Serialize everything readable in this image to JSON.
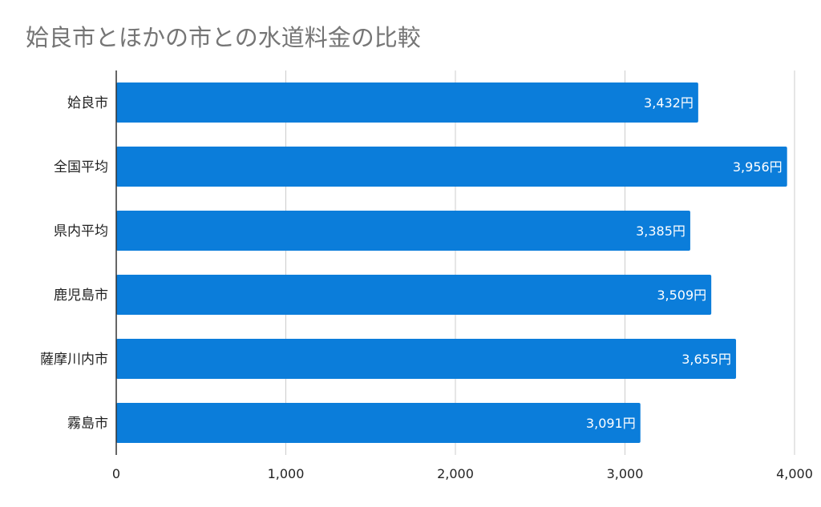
{
  "chart_data": {
    "type": "bar",
    "orientation": "horizontal",
    "title": "姶良市とほかの市との水道料金の比較",
    "categories": [
      "姶良市",
      "全国平均",
      "県内平均",
      "鹿児島市",
      "薩摩川内市",
      "霧島市"
    ],
    "values": [
      3432,
      3956,
      3385,
      3509,
      3655,
      3091
    ],
    "data_labels": [
      "3,432円",
      "3,956円",
      "3,385円",
      "3,509円",
      "3,655円",
      "3,091円"
    ],
    "xlim": [
      0,
      4000
    ],
    "x_ticks": [
      0,
      1000,
      2000,
      3000,
      4000
    ],
    "x_tick_labels": [
      "0",
      "1,000",
      "2,000",
      "3,000",
      "4,000"
    ],
    "grid": true,
    "bar_color": "#0b7dda",
    "xlabel": "",
    "ylabel": ""
  }
}
